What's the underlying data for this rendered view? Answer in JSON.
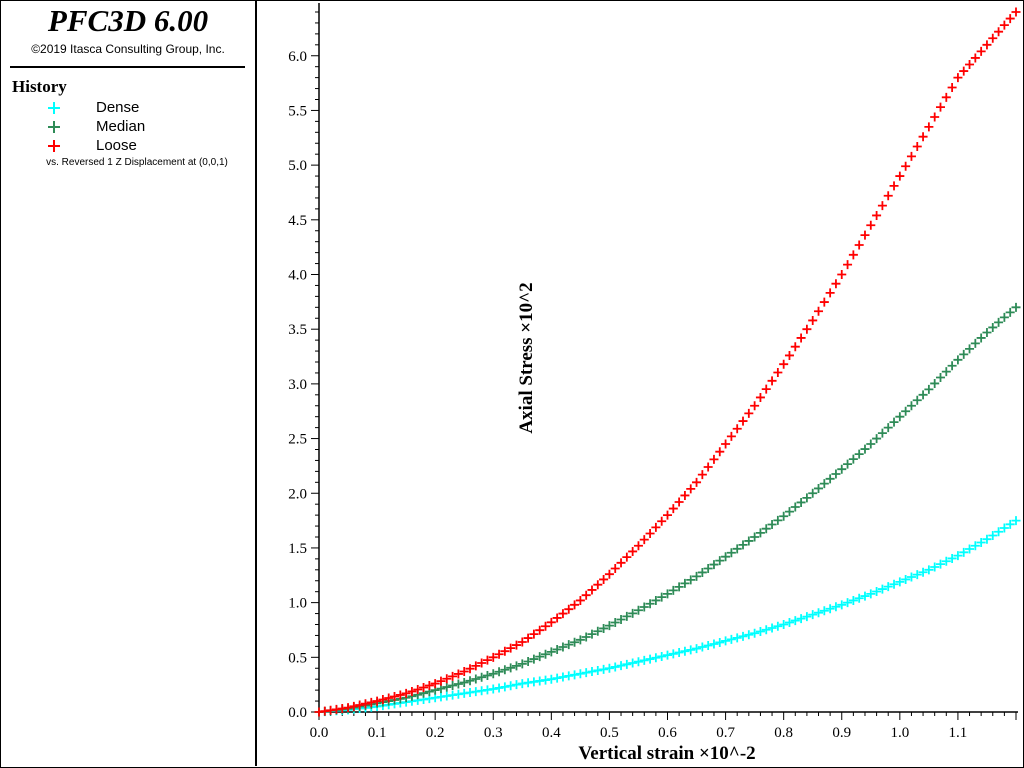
{
  "header": {
    "app_title": "PFC3D 6.00",
    "copyright": "©2019 Itasca Consulting Group, Inc."
  },
  "legend": {
    "title": "History",
    "note": "vs. Reversed 1 Z Displacement at (0,0,1)",
    "items": [
      {
        "label": "Dense",
        "color": "#00ffff",
        "marker": "plus-icon"
      },
      {
        "label": "Median",
        "color": "#2e8b57",
        "marker": "plus-icon"
      },
      {
        "label": "Loose",
        "color": "#ff0000",
        "marker": "plus-icon"
      }
    ]
  },
  "chart_data": {
    "type": "scatter",
    "xlabel": "Vertical strain ×10^-2",
    "ylabel": "Axial Stress ×10^2",
    "xlim": [
      0.0,
      1.2
    ],
    "ylim": [
      0.0,
      6.4
    ],
    "xticks": [
      "0.0",
      "0.1",
      "0.2",
      "0.3",
      "0.4",
      "0.5",
      "0.6",
      "0.7",
      "0.8",
      "0.9",
      "1.0",
      "1.1"
    ],
    "yticks": [
      "0.0",
      "0.5",
      "1.0",
      "1.5",
      "2.0",
      "2.5",
      "3.0",
      "3.5",
      "4.0",
      "4.5",
      "5.0",
      "5.5",
      "6.0"
    ],
    "grid": false,
    "legend_position": "left-panel",
    "x": [
      0.0,
      0.05,
      0.1,
      0.15,
      0.2,
      0.25,
      0.3,
      0.35,
      0.4,
      0.45,
      0.5,
      0.55,
      0.6,
      0.65,
      0.7,
      0.75,
      0.8,
      0.85,
      0.9,
      0.95,
      1.0,
      1.05,
      1.1,
      1.15,
      1.2
    ],
    "series": [
      {
        "name": "Dense",
        "color": "#00ffff",
        "values": [
          0.0,
          0.02,
          0.05,
          0.09,
          0.13,
          0.17,
          0.21,
          0.26,
          0.3,
          0.35,
          0.4,
          0.46,
          0.52,
          0.58,
          0.65,
          0.72,
          0.8,
          0.89,
          0.98,
          1.08,
          1.19,
          1.3,
          1.43,
          1.58,
          1.75
        ]
      },
      {
        "name": "Median",
        "color": "#2e8b57",
        "values": [
          0.0,
          0.03,
          0.08,
          0.13,
          0.2,
          0.27,
          0.35,
          0.44,
          0.55,
          0.66,
          0.79,
          0.93,
          1.08,
          1.24,
          1.42,
          1.6,
          1.79,
          2.0,
          2.22,
          2.45,
          2.7,
          2.95,
          3.22,
          3.47,
          3.7
        ]
      },
      {
        "name": "Loose",
        "color": "#ff0000",
        "values": [
          0.0,
          0.04,
          0.1,
          0.17,
          0.26,
          0.37,
          0.5,
          0.64,
          0.82,
          1.02,
          1.26,
          1.52,
          1.8,
          2.1,
          2.45,
          2.8,
          3.18,
          3.58,
          4.0,
          4.45,
          4.9,
          5.35,
          5.8,
          6.1,
          6.4
        ]
      }
    ]
  }
}
